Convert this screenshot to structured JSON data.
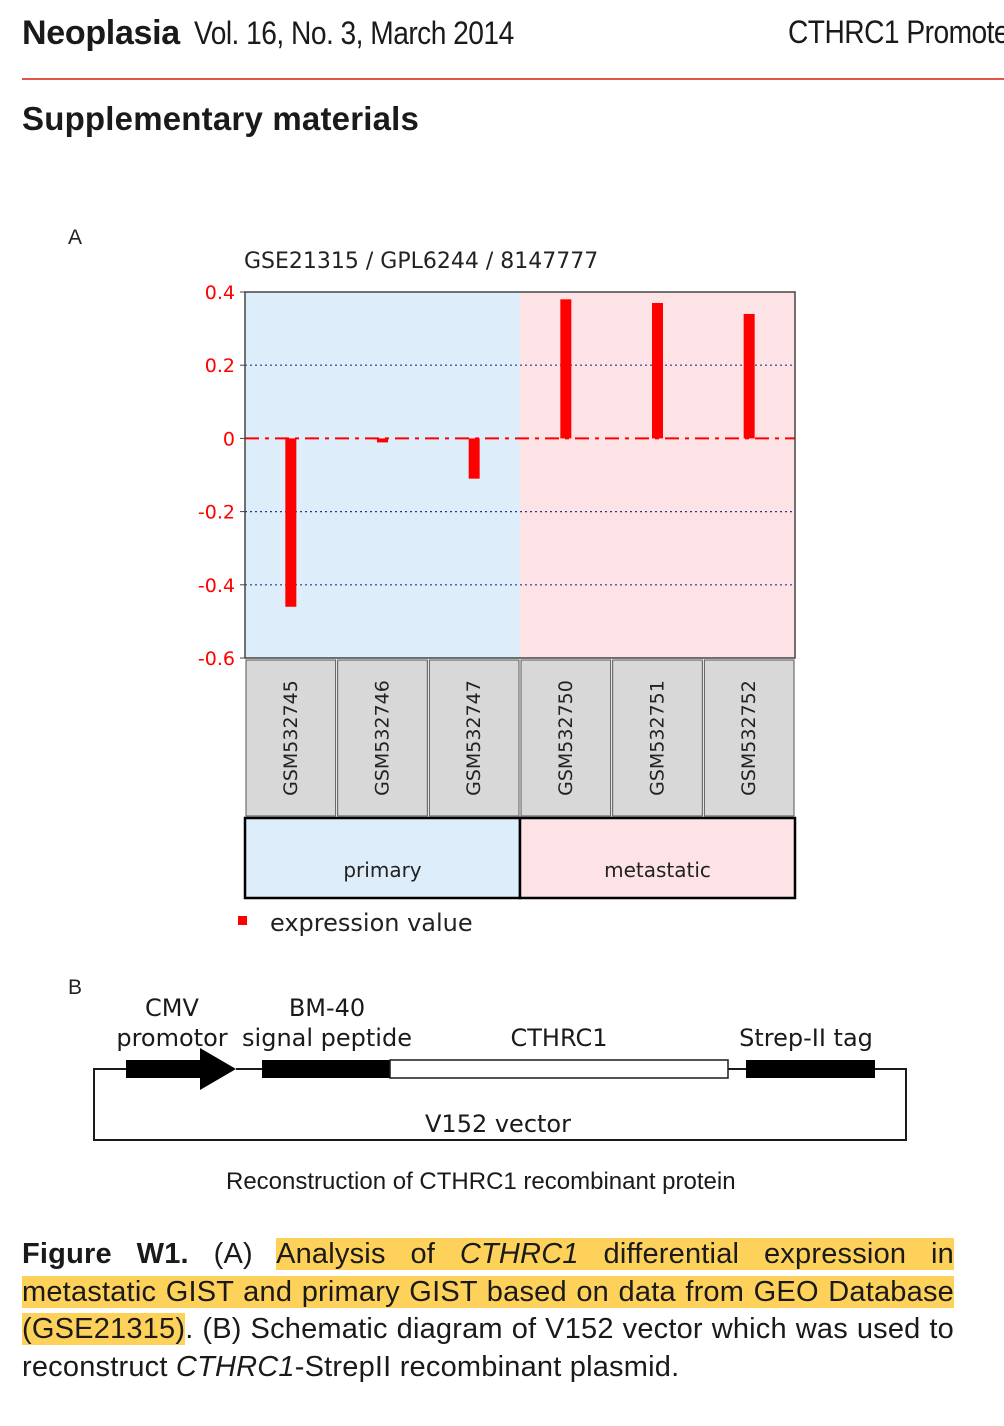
{
  "header": {
    "journal": "Neoplasia",
    "volume": "Vol. 16, No. 3, March 2014",
    "running_title": "CTHRC1 Promote"
  },
  "section_title": "Supplementary materials",
  "panel_a": {
    "letter": "A",
    "chart_data": {
      "type": "bar",
      "title": "GSE21315 / GPL6244 / 8147777",
      "categories": [
        "GSM532745",
        "GSM532746",
        "GSM532747",
        "GSM532750",
        "GSM532751",
        "GSM532752"
      ],
      "values": [
        -0.46,
        -0.01,
        -0.11,
        0.38,
        0.37,
        0.34
      ],
      "groups": [
        {
          "label": "primary",
          "samples": [
            "GSM532745",
            "GSM532746",
            "GSM532747"
          ],
          "color": "#ddeefa"
        },
        {
          "label": "metastatic",
          "samples": [
            "GSM532750",
            "GSM532751",
            "GSM532752"
          ],
          "color": "#fde3e6"
        }
      ],
      "yticks": [
        "0.4",
        "0.2",
        "0",
        "-0.2",
        "-0.4",
        "-0.6"
      ],
      "ylim": [
        -0.6,
        0.4
      ],
      "grid": true,
      "bar_color": "#ff0000",
      "legend": "expression value",
      "legend_position": "bottom-left"
    }
  },
  "panel_b": {
    "letter": "B",
    "labels": {
      "cmv_line1": "CMV",
      "cmv_line2": "promotor",
      "bm40_line1": "BM-40",
      "bm40_line2": "signal peptide",
      "cthrc1": "CTHRC1",
      "strep": "Strep-II tag",
      "vector": "V152 vector"
    },
    "caption": "Reconstruction of CTHRC1 recombinant protein"
  },
  "figure_caption": {
    "label": "Figure W1.",
    "part_a_marker": "(A)",
    "hl_1": "Analysis of",
    "hl_gene": "CTHRC1",
    "hl_2": "differential expression in metastatic GIST and primary GIST based on data from GEO Database (GSE21315)",
    "after_hl": ". (B) Schematic diagram of V152 vector which was used to reconstruct",
    "gene_2": "CTHRC1",
    "end": "-StrepII recombinant plasmid."
  }
}
